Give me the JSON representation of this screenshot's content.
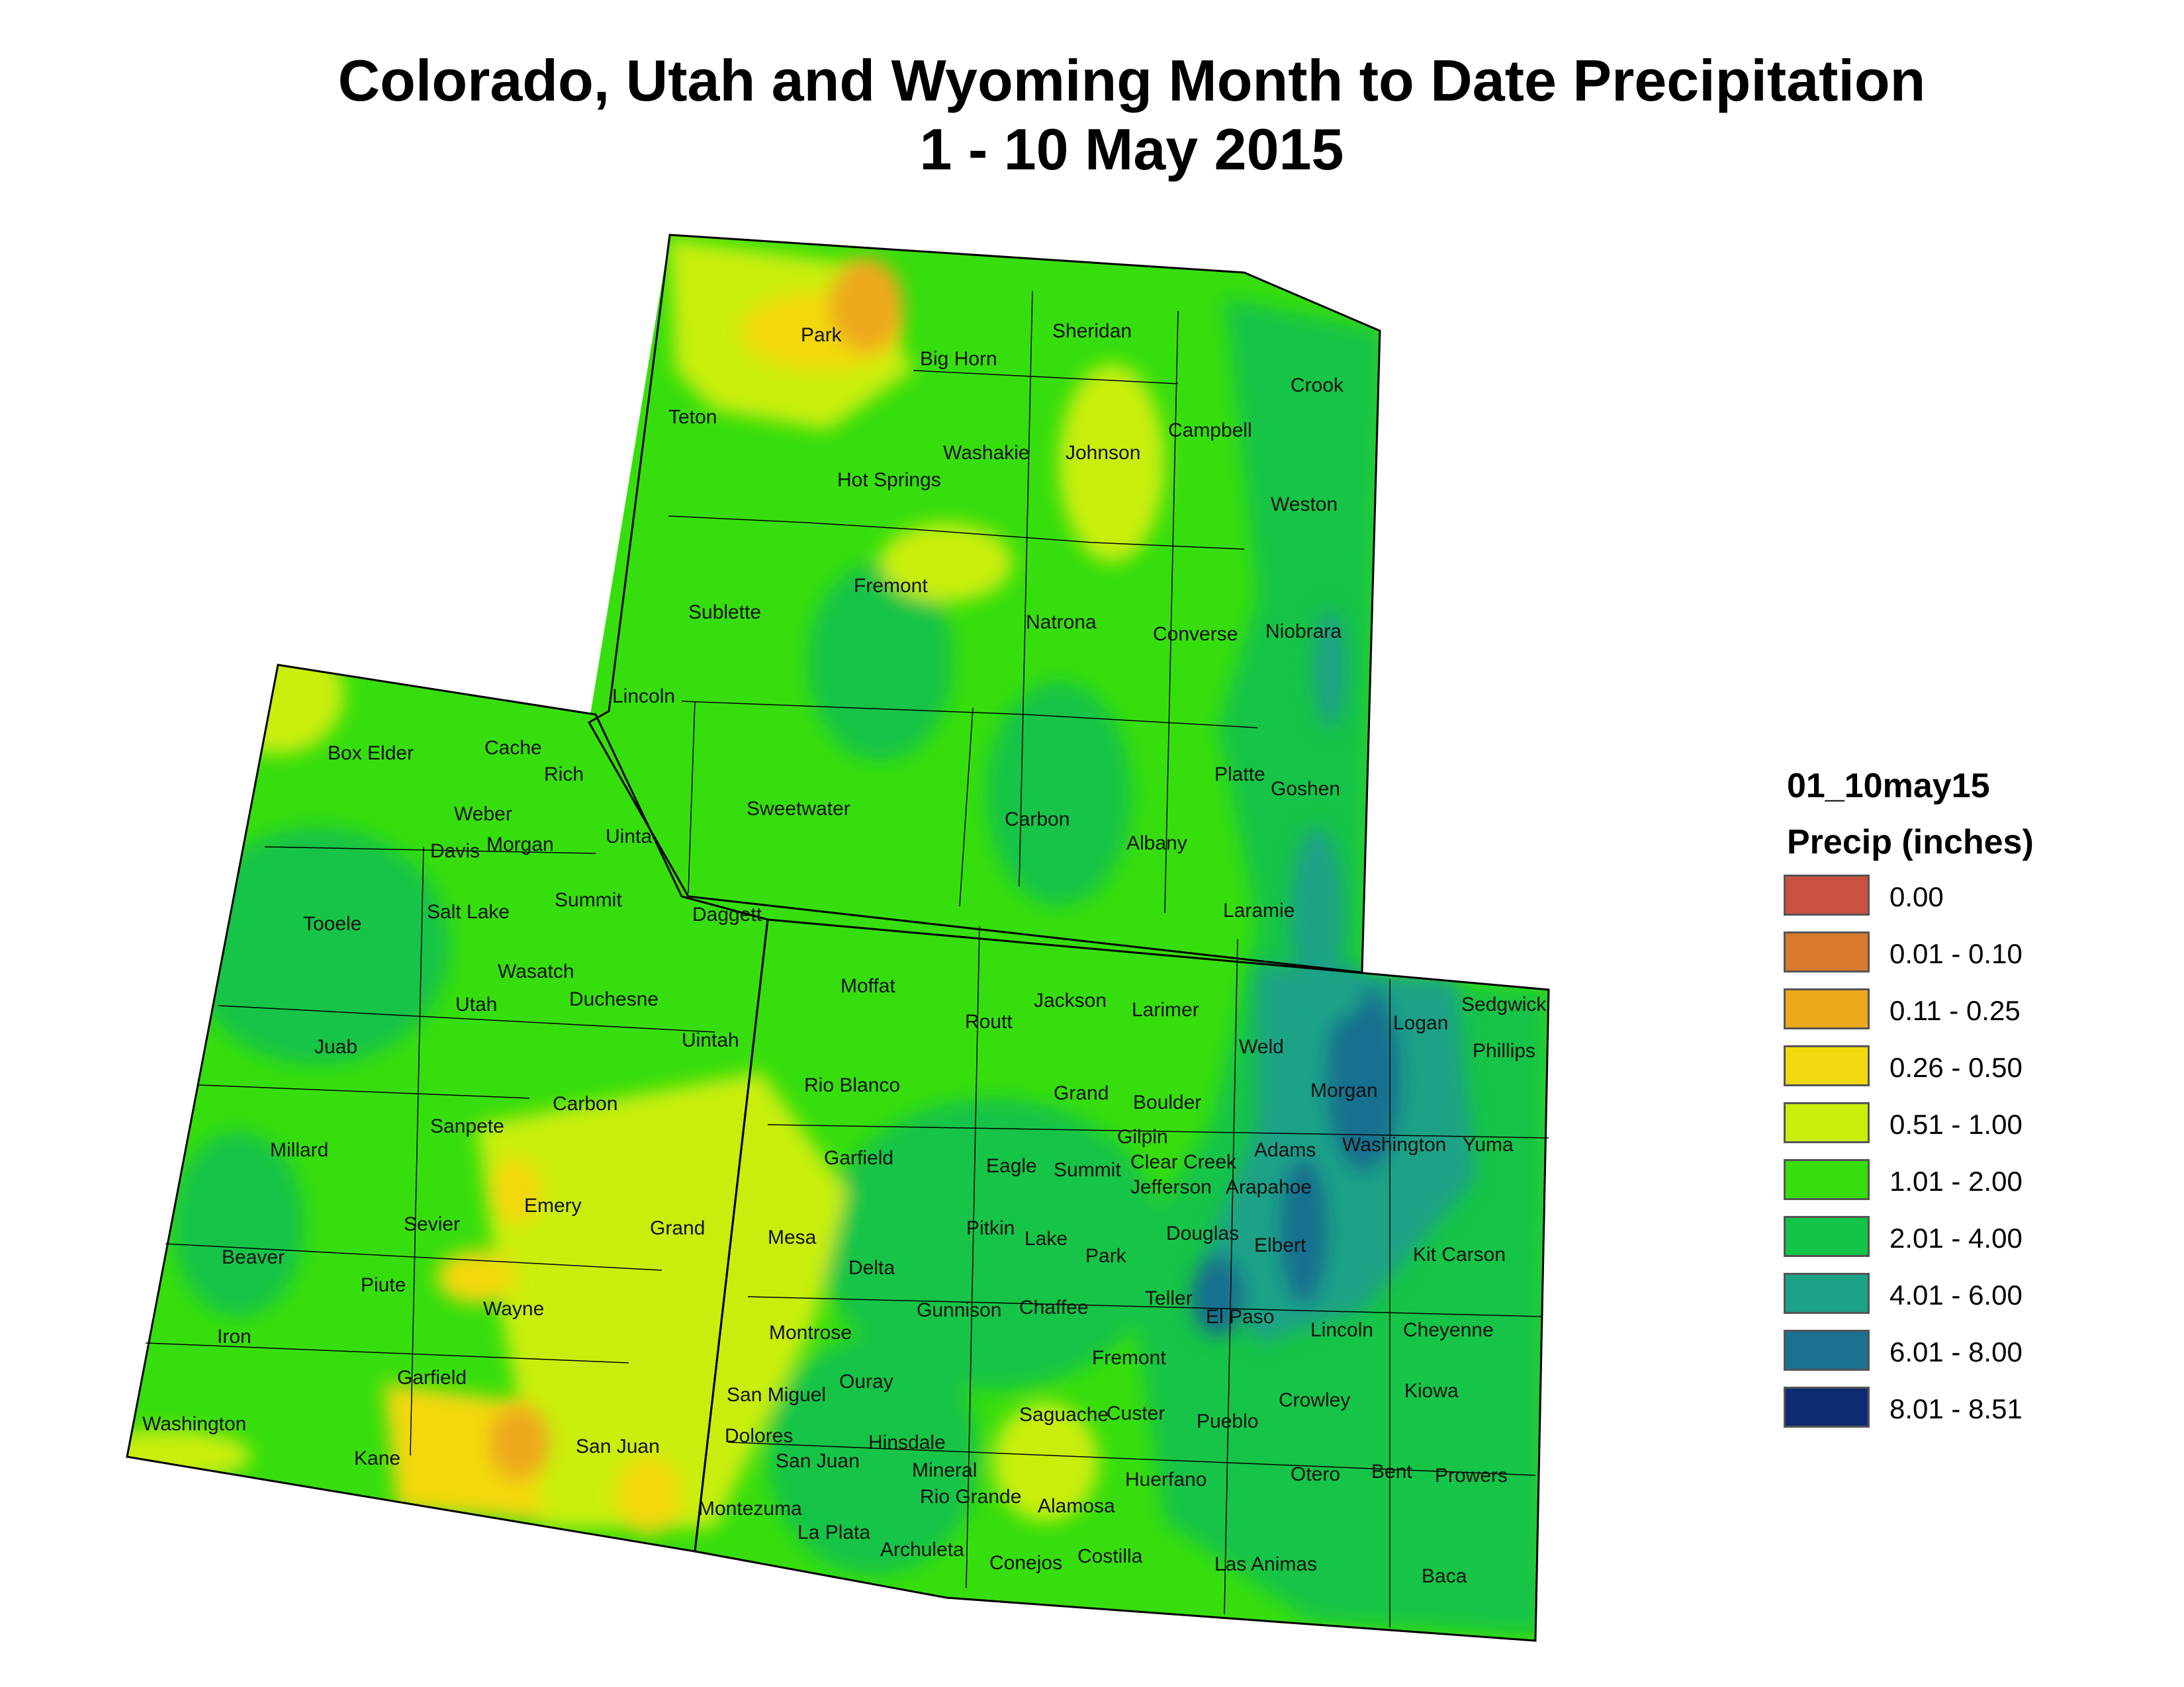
{
  "title": {
    "line1": "Colorado, Utah and Wyoming Month to Date Precipitation",
    "line2": "1 - 10 May 2015"
  },
  "legend": {
    "name": "01_10may15",
    "units": "Precip (inches)",
    "classes": [
      {
        "label": "0.00",
        "color": "#c8513f"
      },
      {
        "label": "0.01 - 0.10",
        "color": "#d8792c"
      },
      {
        "label": "0.11 - 0.25",
        "color": "#eda91b"
      },
      {
        "label": "0.26 - 0.50",
        "color": "#f2d80e"
      },
      {
        "label": "0.51 - 1.00",
        "color": "#c9ee0c"
      },
      {
        "label": "1.01 - 2.00",
        "color": "#37de0d"
      },
      {
        "label": "2.01 - 4.00",
        "color": "#12c447"
      },
      {
        "label": "4.01 - 6.00",
        "color": "#1ba287"
      },
      {
        "label": "6.01 - 8.00",
        "color": "#19708f"
      },
      {
        "label": "8.01 - 8.51",
        "color": "#0c2b72"
      }
    ]
  },
  "counties": {
    "wyoming": [
      "Park",
      "Big Horn",
      "Sheridan",
      "Crook",
      "Teton",
      "Washakie",
      "Johnson",
      "Campbell",
      "Hot Springs",
      "Weston",
      "Fremont",
      "Sublette",
      "Natrona",
      "Converse",
      "Niobrara",
      "Lincoln",
      "Platte",
      "Goshen",
      "Sweetwater",
      "Carbon",
      "Albany",
      "Uinta",
      "Laramie"
    ],
    "utah": [
      "Box Elder",
      "Cache",
      "Rich",
      "Weber",
      "Davis",
      "Morgan",
      "Tooele",
      "Salt Lake",
      "Summit",
      "Daggett",
      "Wasatch",
      "Utah",
      "Duchesne",
      "Uintah",
      "Juab",
      "Carbon",
      "Sanpete",
      "Millard",
      "Emery",
      "Sevier",
      "Grand",
      "Beaver",
      "Piute",
      "Wayne",
      "Iron",
      "Garfield",
      "Washington",
      "Kane",
      "San Juan"
    ],
    "colorado": [
      "Moffat",
      "Routt",
      "Jackson",
      "Larimer",
      "Weld",
      "Logan",
      "Sedgwick",
      "Phillips",
      "Rio Blanco",
      "Grand",
      "Boulder",
      "Morgan",
      "Garfield",
      "Eagle",
      "Summit",
      "Gilpin",
      "Clear Creek",
      "Adams",
      "Washington",
      "Yuma",
      "Jefferson",
      "Arapahoe",
      "Mesa",
      "Pitkin",
      "Lake",
      "Douglas",
      "Elbert",
      "Kit Carson",
      "Park",
      "Delta",
      "Gunnison",
      "Chaffee",
      "Teller",
      "El Paso",
      "Montrose",
      "Lincoln",
      "Cheyenne",
      "Fremont",
      "San Miguel",
      "Ouray",
      "Kiowa",
      "Crowley",
      "Dolores",
      "Hinsdale",
      "Saguache",
      "Custer",
      "Pueblo",
      "San Juan",
      "Mineral",
      "Otero",
      "Bent",
      "Prowers",
      "Huerfano",
      "Rio Grande",
      "Alamosa",
      "Montezuma",
      "La Plata",
      "Archuleta",
      "Conejos",
      "Costilla",
      "Las Animas",
      "Baca"
    ]
  },
  "icons": {
    "precip_grid": "precipitation-raster",
    "outline": "state-boundary"
  }
}
